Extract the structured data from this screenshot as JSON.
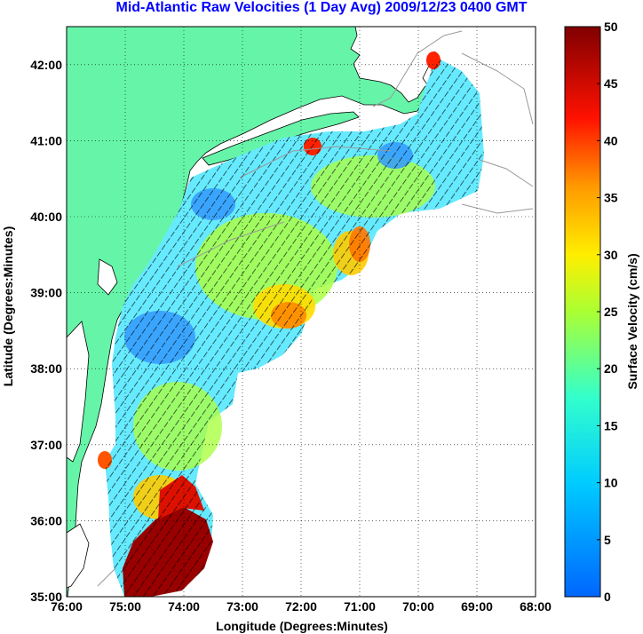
{
  "title": "Mid-Atlantic Raw Velocities (1 Day Avg) 2009/12/23 0400 GMT",
  "colors": {
    "land": "#66f5a8",
    "title": "#0000ff",
    "coast": "#000000",
    "bathymetry": "#999999",
    "arrows": "#000000"
  },
  "map": {
    "xlabel": "Longitude (Degrees:Minutes)",
    "ylabel": "Latitude (Degrees:Minutes)",
    "x_ticks": [
      "76:00",
      "75:00",
      "74:00",
      "73:00",
      "72:00",
      "71:00",
      "70:00",
      "69:00",
      "68:00"
    ],
    "y_ticks": [
      "42:00",
      "41:00",
      "40:00",
      "39:00",
      "38:00",
      "37:00",
      "36:00",
      "35:00"
    ],
    "lon_range": [
      -76,
      -68
    ],
    "lat_range": [
      35,
      42.5
    ],
    "grid": "dotted"
  },
  "colorbar": {
    "label": "Surface Velocity (cm/s)",
    "ticks": [
      "50",
      "45",
      "40",
      "35",
      "30",
      "25",
      "20",
      "15",
      "10",
      "5",
      "0"
    ],
    "range": [
      0,
      50
    ],
    "colormap": "jet"
  }
}
